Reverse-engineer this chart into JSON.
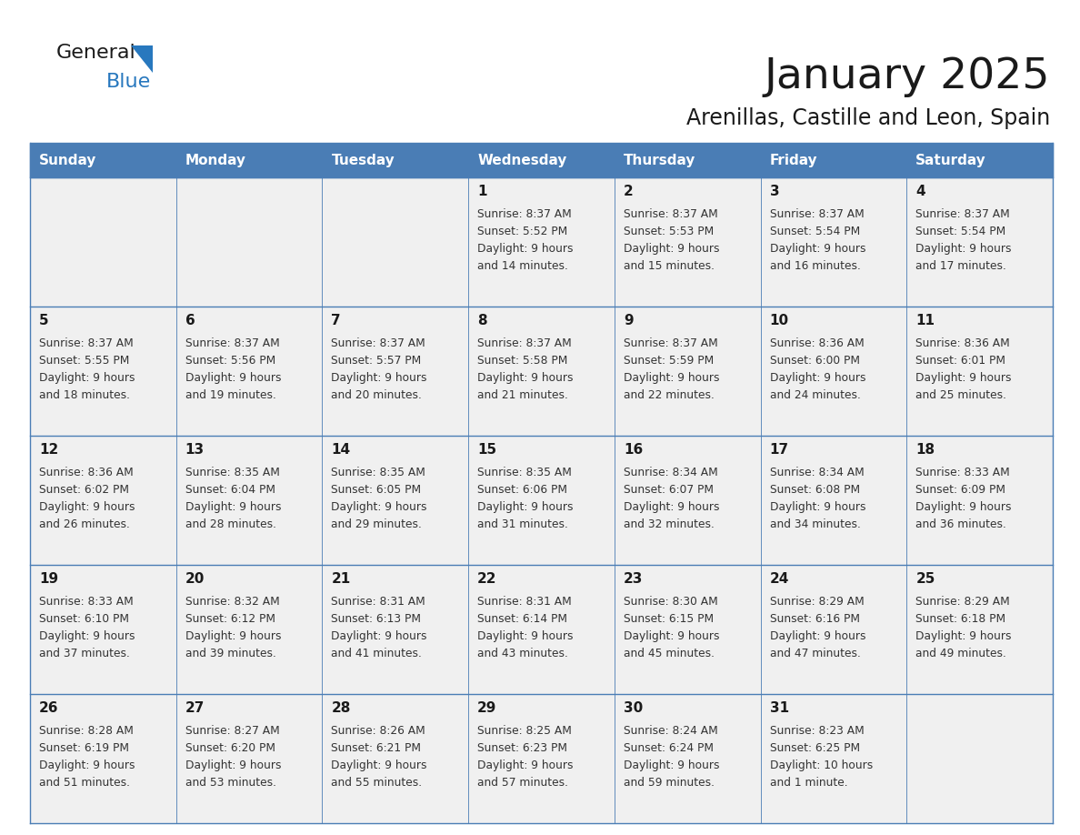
{
  "title": "January 2025",
  "subtitle": "Arenillas, Castille and Leon, Spain",
  "days_of_week": [
    "Sunday",
    "Monday",
    "Tuesday",
    "Wednesday",
    "Thursday",
    "Friday",
    "Saturday"
  ],
  "header_bg": "#4a7db5",
  "header_text": "#ffffff",
  "cell_bg": "#f0f0f0",
  "cell_border": "#4a7db5",
  "title_color": "#1a1a1a",
  "subtitle_color": "#1a1a1a",
  "text_color": "#333333",
  "day_num_color": "#1a1a1a",
  "logo_general_color": "#1a1a1a",
  "logo_blue_color": "#2878be",
  "weeks": [
    {
      "days": [
        {
          "day": null,
          "sunrise": null,
          "sunset": null,
          "daylight": null
        },
        {
          "day": null,
          "sunrise": null,
          "sunset": null,
          "daylight": null
        },
        {
          "day": null,
          "sunrise": null,
          "sunset": null,
          "daylight": null
        },
        {
          "day": 1,
          "sunrise": "8:37 AM",
          "sunset": "5:52 PM",
          "daylight": "9 hours",
          "daylight2": "and 14 minutes."
        },
        {
          "day": 2,
          "sunrise": "8:37 AM",
          "sunset": "5:53 PM",
          "daylight": "9 hours",
          "daylight2": "and 15 minutes."
        },
        {
          "day": 3,
          "sunrise": "8:37 AM",
          "sunset": "5:54 PM",
          "daylight": "9 hours",
          "daylight2": "and 16 minutes."
        },
        {
          "day": 4,
          "sunrise": "8:37 AM",
          "sunset": "5:54 PM",
          "daylight": "9 hours",
          "daylight2": "and 17 minutes."
        }
      ]
    },
    {
      "days": [
        {
          "day": 5,
          "sunrise": "8:37 AM",
          "sunset": "5:55 PM",
          "daylight": "9 hours",
          "daylight2": "and 18 minutes."
        },
        {
          "day": 6,
          "sunrise": "8:37 AM",
          "sunset": "5:56 PM",
          "daylight": "9 hours",
          "daylight2": "and 19 minutes."
        },
        {
          "day": 7,
          "sunrise": "8:37 AM",
          "sunset": "5:57 PM",
          "daylight": "9 hours",
          "daylight2": "and 20 minutes."
        },
        {
          "day": 8,
          "sunrise": "8:37 AM",
          "sunset": "5:58 PM",
          "daylight": "9 hours",
          "daylight2": "and 21 minutes."
        },
        {
          "day": 9,
          "sunrise": "8:37 AM",
          "sunset": "5:59 PM",
          "daylight": "9 hours",
          "daylight2": "and 22 minutes."
        },
        {
          "day": 10,
          "sunrise": "8:36 AM",
          "sunset": "6:00 PM",
          "daylight": "9 hours",
          "daylight2": "and 24 minutes."
        },
        {
          "day": 11,
          "sunrise": "8:36 AM",
          "sunset": "6:01 PM",
          "daylight": "9 hours",
          "daylight2": "and 25 minutes."
        }
      ]
    },
    {
      "days": [
        {
          "day": 12,
          "sunrise": "8:36 AM",
          "sunset": "6:02 PM",
          "daylight": "9 hours",
          "daylight2": "and 26 minutes."
        },
        {
          "day": 13,
          "sunrise": "8:35 AM",
          "sunset": "6:04 PM",
          "daylight": "9 hours",
          "daylight2": "and 28 minutes."
        },
        {
          "day": 14,
          "sunrise": "8:35 AM",
          "sunset": "6:05 PM",
          "daylight": "9 hours",
          "daylight2": "and 29 minutes."
        },
        {
          "day": 15,
          "sunrise": "8:35 AM",
          "sunset": "6:06 PM",
          "daylight": "9 hours",
          "daylight2": "and 31 minutes."
        },
        {
          "day": 16,
          "sunrise": "8:34 AM",
          "sunset": "6:07 PM",
          "daylight": "9 hours",
          "daylight2": "and 32 minutes."
        },
        {
          "day": 17,
          "sunrise": "8:34 AM",
          "sunset": "6:08 PM",
          "daylight": "9 hours",
          "daylight2": "and 34 minutes."
        },
        {
          "day": 18,
          "sunrise": "8:33 AM",
          "sunset": "6:09 PM",
          "daylight": "9 hours",
          "daylight2": "and 36 minutes."
        }
      ]
    },
    {
      "days": [
        {
          "day": 19,
          "sunrise": "8:33 AM",
          "sunset": "6:10 PM",
          "daylight": "9 hours",
          "daylight2": "and 37 minutes."
        },
        {
          "day": 20,
          "sunrise": "8:32 AM",
          "sunset": "6:12 PM",
          "daylight": "9 hours",
          "daylight2": "and 39 minutes."
        },
        {
          "day": 21,
          "sunrise": "8:31 AM",
          "sunset": "6:13 PM",
          "daylight": "9 hours",
          "daylight2": "and 41 minutes."
        },
        {
          "day": 22,
          "sunrise": "8:31 AM",
          "sunset": "6:14 PM",
          "daylight": "9 hours",
          "daylight2": "and 43 minutes."
        },
        {
          "day": 23,
          "sunrise": "8:30 AM",
          "sunset": "6:15 PM",
          "daylight": "9 hours",
          "daylight2": "and 45 minutes."
        },
        {
          "day": 24,
          "sunrise": "8:29 AM",
          "sunset": "6:16 PM",
          "daylight": "9 hours",
          "daylight2": "and 47 minutes."
        },
        {
          "day": 25,
          "sunrise": "8:29 AM",
          "sunset": "6:18 PM",
          "daylight": "9 hours",
          "daylight2": "and 49 minutes."
        }
      ]
    },
    {
      "days": [
        {
          "day": 26,
          "sunrise": "8:28 AM",
          "sunset": "6:19 PM",
          "daylight": "9 hours",
          "daylight2": "and 51 minutes."
        },
        {
          "day": 27,
          "sunrise": "8:27 AM",
          "sunset": "6:20 PM",
          "daylight": "9 hours",
          "daylight2": "and 53 minutes."
        },
        {
          "day": 28,
          "sunrise": "8:26 AM",
          "sunset": "6:21 PM",
          "daylight": "9 hours",
          "daylight2": "and 55 minutes."
        },
        {
          "day": 29,
          "sunrise": "8:25 AM",
          "sunset": "6:23 PM",
          "daylight": "9 hours",
          "daylight2": "and 57 minutes."
        },
        {
          "day": 30,
          "sunrise": "8:24 AM",
          "sunset": "6:24 PM",
          "daylight": "9 hours",
          "daylight2": "and 59 minutes."
        },
        {
          "day": 31,
          "sunrise": "8:23 AM",
          "sunset": "6:25 PM",
          "daylight": "10 hours",
          "daylight2": "and 1 minute."
        },
        {
          "day": null,
          "sunrise": null,
          "sunset": null,
          "daylight": null,
          "daylight2": null
        }
      ]
    }
  ]
}
